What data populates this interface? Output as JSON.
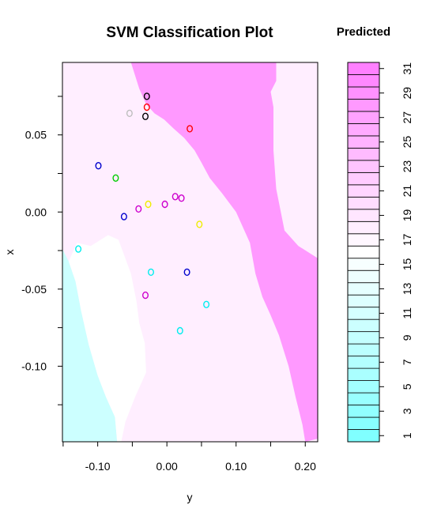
{
  "chart_data": {
    "type": "scatter",
    "title": "SVM Classification Plot",
    "xlabel": "y",
    "ylabel": "x",
    "xlim": [
      -0.151,
      0.218
    ],
    "ylim": [
      -0.149,
      0.097
    ],
    "x_ticks": [
      -0.1,
      0.0,
      0.1,
      0.2
    ],
    "x_tick_labels": [
      "-0.10",
      "0.00",
      "0.10",
      "0.20"
    ],
    "y_ticks": [
      -0.1,
      -0.05,
      0.0,
      0.05
    ],
    "y_tick_labels": [
      "-0.10",
      "-0.05",
      "0.00",
      "0.05"
    ],
    "grid": false,
    "decision_regions": [
      {
        "class_level": "low (cyan)",
        "color": "#ccffff",
        "polygon": [
          [
            -0.151,
            -0.149
          ],
          [
            -0.151,
            -0.024
          ],
          [
            -0.142,
            -0.032
          ],
          [
            -0.132,
            -0.045
          ],
          [
            -0.124,
            -0.064
          ],
          [
            -0.113,
            -0.086
          ],
          [
            -0.1,
            -0.106
          ],
          [
            -0.088,
            -0.12
          ],
          [
            -0.075,
            -0.133
          ],
          [
            -0.072,
            -0.149
          ]
        ]
      },
      {
        "class_level": "middle (white)",
        "color": "#ffffff",
        "polygon": [
          [
            -0.142,
            -0.032
          ],
          [
            -0.13,
            -0.02
          ],
          [
            -0.11,
            -0.022
          ],
          [
            -0.085,
            -0.015
          ],
          [
            -0.07,
            -0.018
          ],
          [
            -0.052,
            -0.04
          ],
          [
            -0.044,
            -0.058
          ],
          [
            -0.04,
            -0.072
          ],
          [
            -0.032,
            -0.085
          ],
          [
            -0.03,
            -0.104
          ],
          [
            -0.046,
            -0.12
          ],
          [
            -0.06,
            -0.136
          ],
          [
            -0.066,
            -0.149
          ],
          [
            -0.072,
            -0.149
          ],
          [
            -0.075,
            -0.133
          ],
          [
            -0.088,
            -0.12
          ],
          [
            -0.1,
            -0.106
          ],
          [
            -0.113,
            -0.086
          ],
          [
            -0.124,
            -0.064
          ],
          [
            -0.132,
            -0.045
          ]
        ]
      },
      {
        "class_level": "high (magenta)",
        "color": "#ff99ff",
        "polygon": [
          [
            -0.052,
            0.097
          ],
          [
            0.158,
            0.097
          ],
          [
            0.158,
            0.085
          ],
          [
            0.15,
            0.078
          ],
          [
            0.154,
            0.068
          ],
          [
            0.154,
            0.04
          ],
          [
            0.158,
            0.015
          ],
          [
            0.17,
            -0.012
          ],
          [
            0.19,
            -0.022
          ],
          [
            0.218,
            -0.03
          ],
          [
            0.218,
            -0.147
          ],
          [
            0.2,
            -0.149
          ],
          [
            0.196,
            -0.138
          ],
          [
            0.186,
            -0.12
          ],
          [
            0.176,
            -0.1
          ],
          [
            0.162,
            -0.08
          ],
          [
            0.15,
            -0.067
          ],
          [
            0.138,
            -0.055
          ],
          [
            0.128,
            -0.04
          ],
          [
            0.12,
            -0.02
          ],
          [
            0.1,
            0.0
          ],
          [
            0.08,
            0.012
          ],
          [
            0.062,
            0.022
          ],
          [
            0.05,
            0.032
          ],
          [
            0.04,
            0.04
          ],
          [
            0.025,
            0.048
          ],
          [
            0.01,
            0.054
          ],
          [
            -0.004,
            0.06
          ],
          [
            -0.018,
            0.064
          ],
          [
            -0.03,
            0.07
          ],
          [
            -0.04,
            0.08
          ]
        ]
      }
    ],
    "points": [
      {
        "x": -0.029,
        "y": 0.075,
        "color": "#000000"
      },
      {
        "x": -0.029,
        "y": 0.068,
        "color": "#ff0000"
      },
      {
        "x": -0.054,
        "y": 0.064,
        "color": "#bebebe"
      },
      {
        "x": -0.031,
        "y": 0.062,
        "color": "#000000"
      },
      {
        "x": 0.033,
        "y": 0.054,
        "color": "#ff0000"
      },
      {
        "x": -0.099,
        "y": 0.03,
        "color": "#0000cd"
      },
      {
        "x": -0.074,
        "y": 0.022,
        "color": "#00cd00"
      },
      {
        "x": 0.012,
        "y": 0.01,
        "color": "#cd00cd"
      },
      {
        "x": 0.021,
        "y": 0.009,
        "color": "#cd00cd"
      },
      {
        "x": -0.003,
        "y": 0.005,
        "color": "#cd00cd"
      },
      {
        "x": -0.027,
        "y": 0.005,
        "color": "#eeee00"
      },
      {
        "x": -0.041,
        "y": 0.002,
        "color": "#cd00cd"
      },
      {
        "x": -0.062,
        "y": -0.003,
        "color": "#0000cd"
      },
      {
        "x": 0.047,
        "y": -0.008,
        "color": "#eeee00"
      },
      {
        "x": -0.128,
        "y": -0.024,
        "color": "#00eeee"
      },
      {
        "x": -0.023,
        "y": -0.039,
        "color": "#00eeee"
      },
      {
        "x": 0.029,
        "y": -0.039,
        "color": "#0000cd"
      },
      {
        "x": -0.031,
        "y": -0.054,
        "color": "#cd00cd"
      },
      {
        "x": 0.057,
        "y": -0.06,
        "color": "#00eeee"
      },
      {
        "x": 0.019,
        "y": -0.077,
        "color": "#00eeee"
      }
    ],
    "legend": {
      "title": "Predicted",
      "placement": "right",
      "levels_min": 1,
      "levels_max": 31,
      "tick_labels": [
        "1",
        "3",
        "5",
        "7",
        "9",
        "11",
        "13",
        "15",
        "17",
        "19",
        "21",
        "23",
        "25",
        "27",
        "29",
        "31"
      ],
      "color_low": "#80ffff",
      "color_mid": "#ffffff",
      "color_high": "#ff80ff"
    }
  }
}
